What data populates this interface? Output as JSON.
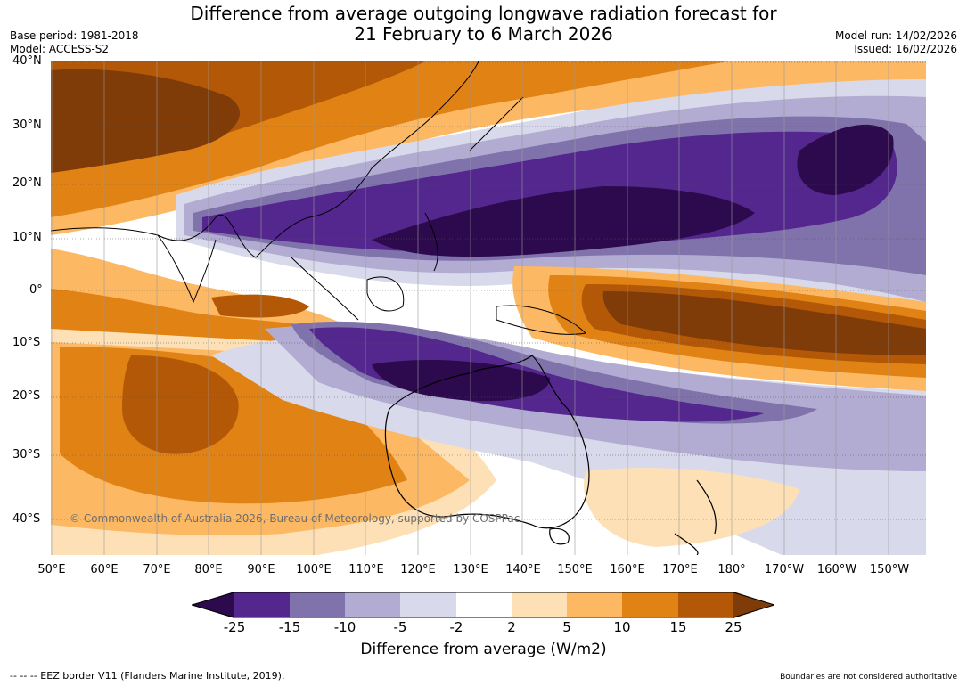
{
  "title": {
    "line1": "Difference from average outgoing longwave radiation forecast for",
    "line2": "21 February to 6 March 2026"
  },
  "meta": {
    "base_period": "Base period: 1981-2018",
    "model": "Model: ACCESS-S2",
    "model_run": "Model run: 14/02/2026",
    "issued": "Issued: 16/02/2026"
  },
  "map": {
    "lat_labels": [
      "40°N",
      "30°N",
      "20°N",
      "10°N",
      "0°",
      "10°S",
      "20°S",
      "30°S",
      "40°S"
    ],
    "lon_labels": [
      "50°E",
      "60°E",
      "70°E",
      "80°E",
      "90°E",
      "100°E",
      "110°E",
      "120°E",
      "130°E",
      "140°E",
      "150°E",
      "160°E",
      "170°E",
      "180°",
      "170°W",
      "160°W",
      "150°W"
    ],
    "copyright": "© Commonwealth of Australia 2026, Bureau of Meteorology, supported by COSPPac"
  },
  "colorbar": {
    "ticks": [
      "-25",
      "-15",
      "-10",
      "-5",
      "-2",
      "2",
      "5",
      "10",
      "15",
      "25"
    ],
    "colors": [
      "#2d0a4e",
      "#54278f",
      "#8073ac",
      "#b2abd2",
      "#d8daeb",
      "#ffffff",
      "#fee0b6",
      "#fdb863",
      "#e08214",
      "#b35806",
      "#7f3b08"
    ],
    "label": "Difference from average (W/m2)"
  },
  "footer": {
    "eez": "--  --  -- EEZ border V11 (Flanders Marine Institute, 2019).",
    "disclaimer": "Boundaries are not considered authoritative"
  }
}
